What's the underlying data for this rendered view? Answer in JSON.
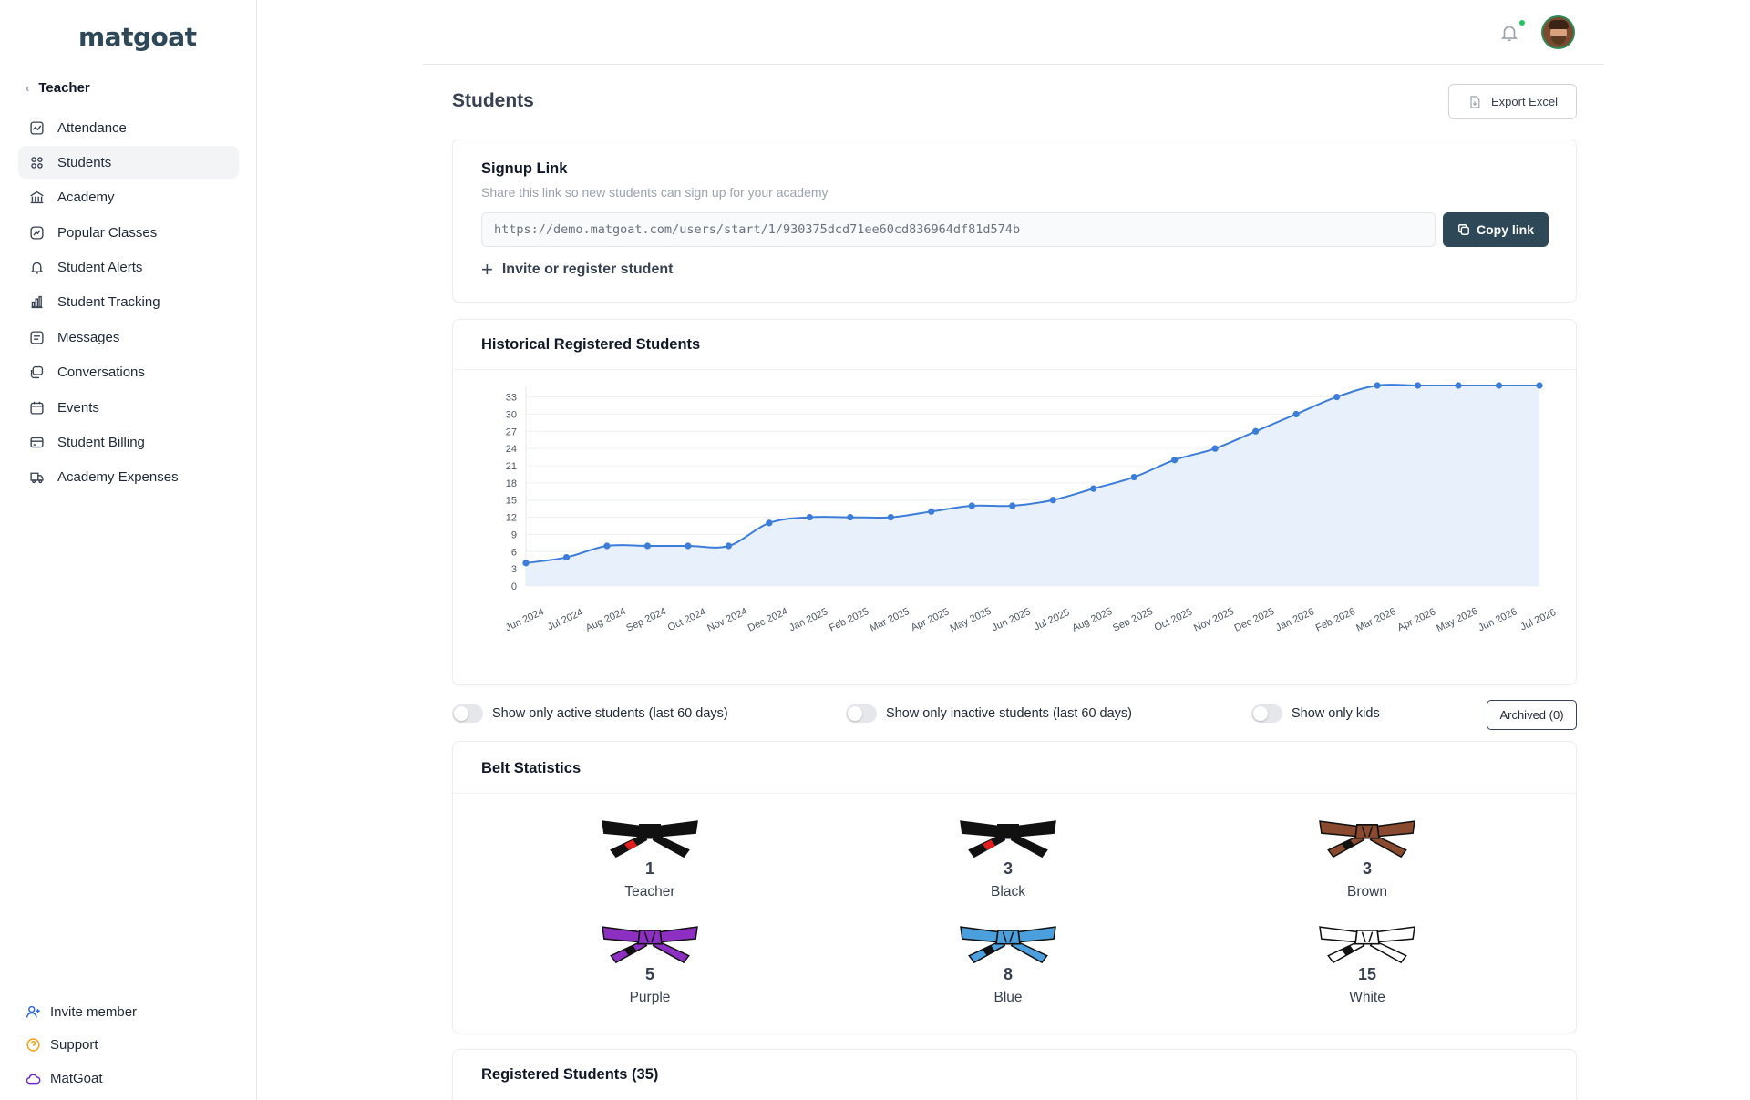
{
  "app": {
    "logo": "matgoat"
  },
  "sidebar": {
    "section": "Teacher",
    "items": [
      {
        "label": "Attendance",
        "icon": "chart-square-icon"
      },
      {
        "label": "Students",
        "icon": "users-icon",
        "active": true
      },
      {
        "label": "Academy",
        "icon": "building-icon"
      },
      {
        "label": "Popular Classes",
        "icon": "trend-icon"
      },
      {
        "label": "Student Alerts",
        "icon": "bell-icon"
      },
      {
        "label": "Student Tracking",
        "icon": "bar-chart-icon"
      },
      {
        "label": "Messages",
        "icon": "message-icon"
      },
      {
        "label": "Conversations",
        "icon": "chat-icon"
      },
      {
        "label": "Events",
        "icon": "calendar-icon"
      },
      {
        "label": "Student Billing",
        "icon": "card-icon"
      },
      {
        "label": "Academy Expenses",
        "icon": "truck-icon"
      }
    ],
    "bottom": [
      {
        "label": "Invite member",
        "icon": "user-plus-icon",
        "color": "#2563eb"
      },
      {
        "label": "Support",
        "icon": "help-icon",
        "color": "#f59e0b"
      },
      {
        "label": "MatGoat",
        "icon": "cloud-icon",
        "color": "#6d28d9"
      }
    ]
  },
  "page": {
    "title": "Students",
    "export_label": "Export Excel"
  },
  "signup": {
    "title": "Signup Link",
    "subtitle": "Share this link so new students can sign up for your academy",
    "url": "https://demo.matgoat.com/users/start/1/930375dcd71ee60cd836964df81d574b",
    "copy_label": "Copy link",
    "invite_label": "Invite or register student"
  },
  "chart": {
    "title": "Historical Registered Students"
  },
  "chart_data": {
    "type": "area",
    "title": "Historical Registered Students",
    "xlabel": "",
    "ylabel": "",
    "categories": [
      "Jun 2024",
      "Jul 2024",
      "Aug 2024",
      "Sep 2024",
      "Oct 2024",
      "Nov 2024",
      "Dec 2024",
      "Jan 2025",
      "Feb 2025",
      "Mar 2025",
      "Apr 2025",
      "May 2025",
      "Jun 2025",
      "Jul 2025",
      "Aug 2025",
      "Sep 2025",
      "Oct 2025",
      "Nov 2025",
      "Dec 2025",
      "Jan 2026",
      "Feb 2026",
      "Mar 2026",
      "Apr 2026",
      "May 2026",
      "Jun 2026",
      "Jul 2026"
    ],
    "values": [
      4,
      5,
      7,
      7,
      7,
      7,
      11,
      12,
      12,
      12,
      13,
      14,
      14,
      15,
      17,
      19,
      22,
      24,
      27,
      30,
      33,
      35,
      35,
      35,
      35,
      35
    ],
    "yticks": [
      0,
      3,
      6,
      9,
      12,
      15,
      18,
      21,
      24,
      27,
      30,
      33
    ],
    "ylim": [
      0,
      35
    ],
    "grid": true,
    "color": "#3b7dd8",
    "fill": "#e8f0fc"
  },
  "filters": {
    "active_label": "Show only active students (last 60 days)",
    "inactive_label": "Show only inactive students (last 60 days)",
    "kids_label": "Show only kids",
    "archived_label": "Archived (0)"
  },
  "belts": {
    "title": "Belt Statistics",
    "items": [
      {
        "label": "Teacher",
        "count": "1",
        "color": "#111111",
        "bar": "#e11d1d"
      },
      {
        "label": "Black",
        "count": "3",
        "color": "#111111",
        "bar": "#e11d1d"
      },
      {
        "label": "Brown",
        "count": "3",
        "color": "#8a4a2f",
        "bar": "#111111"
      },
      {
        "label": "Purple",
        "count": "5",
        "color": "#8e2fc4",
        "bar": "#111111"
      },
      {
        "label": "Blue",
        "count": "8",
        "color": "#4a9fdc",
        "bar": "#111111"
      },
      {
        "label": "White",
        "count": "15",
        "color": "#ffffff",
        "bar": "#111111"
      }
    ]
  },
  "registered": {
    "title": "Registered Students (35)"
  }
}
